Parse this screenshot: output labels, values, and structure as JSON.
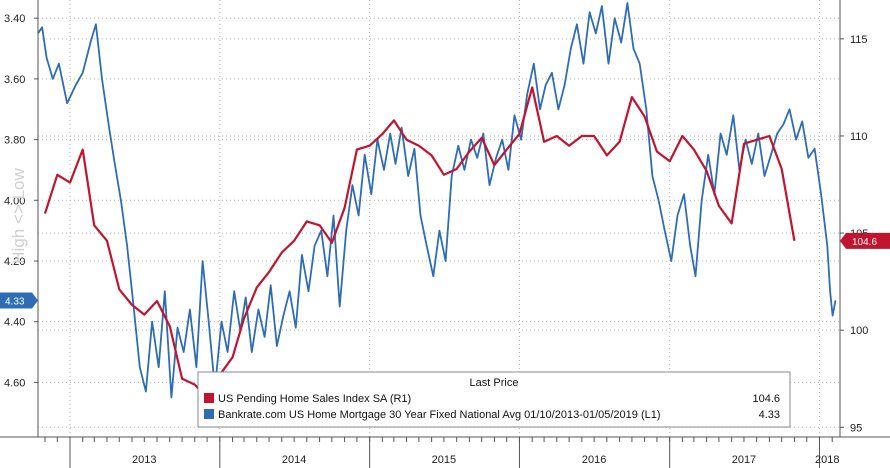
{
  "chart_data": {
    "type": "line",
    "title": "",
    "xlabel": "",
    "y_left_label": "High <> Low",
    "x_range": [
      "2012-10-15",
      "2018-02-20"
    ],
    "x_tick_labels": [
      {
        "label": "2013",
        "date": "2013-07-01"
      },
      {
        "label": "2014",
        "date": "2014-07-01"
      },
      {
        "label": "2015",
        "date": "2015-07-01"
      },
      {
        "label": "2016",
        "date": "2016-07-01"
      },
      {
        "label": "2017",
        "date": "2017-07-01"
      },
      {
        "label": "2018",
        "date": "2018-01-20"
      }
    ],
    "year_boundaries": [
      "2013-01-01",
      "2014-01-01",
      "2015-01-01",
      "2016-01-01",
      "2017-01-01",
      "2018-01-01"
    ],
    "y_left": {
      "inverted": true,
      "range": [
        3.34,
        4.78
      ],
      "ticks": [
        "3.40",
        "3.60",
        "3.80",
        "4.00",
        "4.20",
        "4.40",
        "4.60"
      ]
    },
    "y_right": {
      "range": [
        94.5,
        117
      ],
      "ticks": [
        "95",
        "100",
        "105",
        "110",
        "115"
      ]
    },
    "legend": {
      "header": "Last Price",
      "position": "bottom-right"
    },
    "series": [
      {
        "name": "US Pending Home Sales Index SA  (R1)",
        "last_value": "104.6",
        "axis": "right",
        "color": "#c0142f",
        "points": [
          [
            "2012-11-01",
            106.0
          ],
          [
            "2012-12-01",
            108.0
          ],
          [
            "2013-01-01",
            107.6
          ],
          [
            "2013-02-01",
            109.3
          ],
          [
            "2013-03-01",
            105.4
          ],
          [
            "2013-04-01",
            104.6
          ],
          [
            "2013-05-01",
            102.1
          ],
          [
            "2013-06-01",
            101.3
          ],
          [
            "2013-07-01",
            100.8
          ],
          [
            "2013-08-01",
            101.5
          ],
          [
            "2013-09-01",
            100.2
          ],
          [
            "2013-10-01",
            97.5
          ],
          [
            "2013-11-01",
            97.2
          ],
          [
            "2013-12-01",
            96.5
          ],
          [
            "2014-01-01",
            97.7
          ],
          [
            "2014-02-01",
            98.6
          ],
          [
            "2014-03-01",
            100.6
          ],
          [
            "2014-04-01",
            102.2
          ],
          [
            "2014-05-01",
            103.0
          ],
          [
            "2014-06-01",
            104.0
          ],
          [
            "2014-07-01",
            104.6
          ],
          [
            "2014-08-01",
            105.6
          ],
          [
            "2014-09-01",
            105.4
          ],
          [
            "2014-10-01",
            104.5
          ],
          [
            "2014-11-01",
            106.3
          ],
          [
            "2014-12-01",
            109.3
          ],
          [
            "2015-01-01",
            109.5
          ],
          [
            "2015-02-01",
            110.1
          ],
          [
            "2015-03-01",
            110.8
          ],
          [
            "2015-04-01",
            109.8
          ],
          [
            "2015-05-01",
            109.5
          ],
          [
            "2015-06-01",
            109.0
          ],
          [
            "2015-07-01",
            108.0
          ],
          [
            "2015-08-01",
            108.3
          ],
          [
            "2015-09-01",
            109.2
          ],
          [
            "2015-10-01",
            109.9
          ],
          [
            "2015-11-01",
            108.5
          ],
          [
            "2015-12-01",
            109.3
          ],
          [
            "2016-01-01",
            110.1
          ],
          [
            "2016-02-01",
            112.5
          ],
          [
            "2016-03-01",
            109.7
          ],
          [
            "2016-04-01",
            110.0
          ],
          [
            "2016-05-01",
            109.5
          ],
          [
            "2016-06-01",
            110.0
          ],
          [
            "2016-07-01",
            110.0
          ],
          [
            "2016-08-01",
            109.0
          ],
          [
            "2016-09-01",
            109.7
          ],
          [
            "2016-10-01",
            112.0
          ],
          [
            "2016-11-01",
            111.0
          ],
          [
            "2016-12-01",
            109.2
          ],
          [
            "2017-01-01",
            108.7
          ],
          [
            "2017-02-01",
            110.0
          ],
          [
            "2017-03-01",
            109.3
          ],
          [
            "2017-04-01",
            108.2
          ],
          [
            "2017-05-01",
            106.4
          ],
          [
            "2017-06-01",
            105.5
          ],
          [
            "2017-07-01",
            109.6
          ],
          [
            "2017-08-01",
            109.8
          ],
          [
            "2017-09-01",
            110.0
          ],
          [
            "2017-10-01",
            108.3
          ],
          [
            "2017-11-01",
            104.6
          ]
        ]
      },
      {
        "name": "Bankrate.com US Home Mortgage 30 Year Fixed National Avg 01/10/2013-01/05/2019  (L1)",
        "last_value": "4.33",
        "axis": "left",
        "color": "#2e6db5",
        "points": [
          [
            "2012-10-15",
            3.45
          ],
          [
            "2012-10-25",
            3.43
          ],
          [
            "2012-11-05",
            3.53
          ],
          [
            "2012-11-20",
            3.6
          ],
          [
            "2012-12-05",
            3.55
          ],
          [
            "2012-12-25",
            3.68
          ],
          [
            "2013-01-15",
            3.62
          ],
          [
            "2013-02-01",
            3.58
          ],
          [
            "2013-02-20",
            3.48
          ],
          [
            "2013-03-05",
            3.42
          ],
          [
            "2013-03-20",
            3.6
          ],
          [
            "2013-04-05",
            3.75
          ],
          [
            "2013-04-20",
            3.88
          ],
          [
            "2013-05-05",
            4.0
          ],
          [
            "2013-05-20",
            4.15
          ],
          [
            "2013-06-05",
            4.35
          ],
          [
            "2013-06-20",
            4.55
          ],
          [
            "2013-07-05",
            4.63
          ],
          [
            "2013-07-20",
            4.4
          ],
          [
            "2013-08-05",
            4.55
          ],
          [
            "2013-08-20",
            4.3
          ],
          [
            "2013-09-05",
            4.65
          ],
          [
            "2013-09-20",
            4.42
          ],
          [
            "2013-10-05",
            4.5
          ],
          [
            "2013-10-20",
            4.36
          ],
          [
            "2013-11-05",
            4.55
          ],
          [
            "2013-11-20",
            4.2
          ],
          [
            "2013-12-05",
            4.4
          ],
          [
            "2013-12-20",
            4.62
          ],
          [
            "2014-01-05",
            4.4
          ],
          [
            "2014-01-20",
            4.5
          ],
          [
            "2014-02-05",
            4.3
          ],
          [
            "2014-02-20",
            4.43
          ],
          [
            "2014-03-05",
            4.32
          ],
          [
            "2014-03-20",
            4.5
          ],
          [
            "2014-04-05",
            4.36
          ],
          [
            "2014-04-20",
            4.45
          ],
          [
            "2014-05-05",
            4.28
          ],
          [
            "2014-05-20",
            4.48
          ],
          [
            "2014-06-05",
            4.38
          ],
          [
            "2014-06-20",
            4.3
          ],
          [
            "2014-07-05",
            4.42
          ],
          [
            "2014-07-20",
            4.18
          ],
          [
            "2014-08-05",
            4.3
          ],
          [
            "2014-08-20",
            4.15
          ],
          [
            "2014-09-05",
            4.1
          ],
          [
            "2014-09-20",
            4.25
          ],
          [
            "2014-10-05",
            4.05
          ],
          [
            "2014-10-20",
            4.35
          ],
          [
            "2014-11-05",
            4.1
          ],
          [
            "2014-11-20",
            3.95
          ],
          [
            "2014-12-05",
            4.05
          ],
          [
            "2014-12-20",
            3.85
          ],
          [
            "2015-01-05",
            3.98
          ],
          [
            "2015-01-20",
            3.8
          ],
          [
            "2015-02-05",
            3.9
          ],
          [
            "2015-02-20",
            3.78
          ],
          [
            "2015-03-05",
            3.88
          ],
          [
            "2015-03-20",
            3.76
          ],
          [
            "2015-04-05",
            3.92
          ],
          [
            "2015-04-20",
            3.83
          ],
          [
            "2015-05-05",
            4.05
          ],
          [
            "2015-05-20",
            4.15
          ],
          [
            "2015-06-05",
            4.25
          ],
          [
            "2015-06-20",
            4.1
          ],
          [
            "2015-07-05",
            4.2
          ],
          [
            "2015-07-20",
            3.92
          ],
          [
            "2015-08-05",
            3.82
          ],
          [
            "2015-08-20",
            3.9
          ],
          [
            "2015-09-05",
            3.8
          ],
          [
            "2015-09-20",
            3.86
          ],
          [
            "2015-10-05",
            3.78
          ],
          [
            "2015-10-20",
            3.95
          ],
          [
            "2015-11-05",
            3.86
          ],
          [
            "2015-11-20",
            3.8
          ],
          [
            "2015-12-05",
            3.9
          ],
          [
            "2015-12-20",
            3.72
          ],
          [
            "2016-01-05",
            3.8
          ],
          [
            "2016-01-20",
            3.65
          ],
          [
            "2016-02-05",
            3.55
          ],
          [
            "2016-02-20",
            3.7
          ],
          [
            "2016-03-05",
            3.62
          ],
          [
            "2016-03-20",
            3.58
          ],
          [
            "2016-04-05",
            3.7
          ],
          [
            "2016-04-20",
            3.62
          ],
          [
            "2016-05-05",
            3.5
          ],
          [
            "2016-05-20",
            3.42
          ],
          [
            "2016-06-05",
            3.55
          ],
          [
            "2016-06-20",
            3.38
          ],
          [
            "2016-07-05",
            3.45
          ],
          [
            "2016-07-20",
            3.36
          ],
          [
            "2016-08-05",
            3.55
          ],
          [
            "2016-08-20",
            3.4
          ],
          [
            "2016-09-05",
            3.48
          ],
          [
            "2016-09-20",
            3.35
          ],
          [
            "2016-10-05",
            3.5
          ],
          [
            "2016-10-20",
            3.55
          ],
          [
            "2016-11-05",
            3.7
          ],
          [
            "2016-11-20",
            3.92
          ],
          [
            "2016-12-05",
            4.0
          ],
          [
            "2016-12-20",
            4.1
          ],
          [
            "2017-01-05",
            4.2
          ],
          [
            "2017-01-20",
            4.05
          ],
          [
            "2017-02-05",
            3.98
          ],
          [
            "2017-02-20",
            4.15
          ],
          [
            "2017-03-05",
            4.25
          ],
          [
            "2017-03-20",
            4.0
          ],
          [
            "2017-04-05",
            3.85
          ],
          [
            "2017-04-20",
            3.98
          ],
          [
            "2017-05-05",
            3.78
          ],
          [
            "2017-05-20",
            3.85
          ],
          [
            "2017-06-05",
            3.72
          ],
          [
            "2017-06-20",
            3.9
          ],
          [
            "2017-07-05",
            3.8
          ],
          [
            "2017-07-20",
            3.88
          ],
          [
            "2017-08-05",
            3.78
          ],
          [
            "2017-08-20",
            3.92
          ],
          [
            "2017-09-05",
            3.85
          ],
          [
            "2017-09-20",
            3.78
          ],
          [
            "2017-10-05",
            3.75
          ],
          [
            "2017-10-20",
            3.7
          ],
          [
            "2017-11-05",
            3.8
          ],
          [
            "2017-11-20",
            3.74
          ],
          [
            "2017-12-05",
            3.86
          ],
          [
            "2017-12-20",
            3.83
          ],
          [
            "2018-01-05",
            3.98
          ],
          [
            "2018-01-20",
            4.15
          ],
          [
            "2018-01-27",
            4.3
          ],
          [
            "2018-02-02",
            4.38
          ],
          [
            "2018-02-09",
            4.33
          ]
        ]
      }
    ]
  }
}
